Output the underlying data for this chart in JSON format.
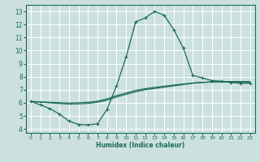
{
  "xlabel": "Humidex (Indice chaleur)",
  "bg_color": "#cce0e0",
  "grid_color": "#ffffff",
  "line_color": "#1a6b5a",
  "xlim": [
    -0.5,
    23.5
  ],
  "ylim": [
    3.7,
    13.5
  ],
  "xticks": [
    0,
    1,
    2,
    3,
    4,
    5,
    6,
    7,
    8,
    9,
    10,
    11,
    12,
    13,
    14,
    15,
    16,
    17,
    18,
    19,
    20,
    21,
    22,
    23
  ],
  "yticks": [
    4,
    5,
    6,
    7,
    8,
    9,
    10,
    11,
    12,
    13
  ],
  "line1_x": [
    0,
    1,
    2,
    3,
    4,
    5,
    6,
    7,
    8,
    9,
    10,
    11,
    12,
    13,
    14,
    15,
    16,
    17,
    18,
    19,
    20,
    21,
    22,
    23
  ],
  "line1_y": [
    6.1,
    5.85,
    5.55,
    5.15,
    4.6,
    4.35,
    4.3,
    4.4,
    5.5,
    7.3,
    9.5,
    12.2,
    12.5,
    13.0,
    12.7,
    11.6,
    10.2,
    8.1,
    7.9,
    7.7,
    7.65,
    7.55,
    7.5,
    7.5
  ],
  "line2_x": [
    0,
    1,
    2,
    3,
    4,
    5,
    6,
    7,
    8,
    9,
    10,
    11,
    12,
    13,
    14,
    15,
    16,
    17,
    18,
    19,
    20,
    21,
    22,
    23
  ],
  "line2_y": [
    6.1,
    6.05,
    6.0,
    5.95,
    5.9,
    5.92,
    5.95,
    6.05,
    6.2,
    6.45,
    6.65,
    6.85,
    7.0,
    7.1,
    7.2,
    7.3,
    7.4,
    7.5,
    7.55,
    7.6,
    7.6,
    7.6,
    7.6,
    7.6
  ],
  "line3_x": [
    0,
    1,
    2,
    3,
    4,
    5,
    6,
    7,
    8,
    9,
    10,
    11,
    12,
    13,
    14,
    15,
    16,
    17,
    18,
    19,
    20,
    21,
    22,
    23
  ],
  "line3_y": [
    6.1,
    6.07,
    6.04,
    6.01,
    5.98,
    6.0,
    6.04,
    6.12,
    6.3,
    6.55,
    6.75,
    6.95,
    7.08,
    7.18,
    7.27,
    7.36,
    7.44,
    7.52,
    7.57,
    7.6,
    7.62,
    7.63,
    7.63,
    7.63
  ]
}
